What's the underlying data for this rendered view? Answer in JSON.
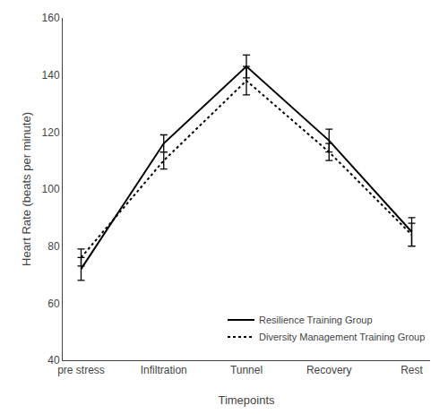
{
  "chart_data": {
    "type": "line",
    "categories": [
      "pre stress",
      "Infiltration",
      "Tunnel",
      "Recovery",
      "Rest"
    ],
    "series": [
      {
        "name": "Resilience Training Group",
        "color": "#000000",
        "line_style": "solid",
        "values": [
          72,
          116,
          143,
          117,
          85
        ],
        "errors": [
          4,
          3,
          4,
          4,
          5
        ]
      },
      {
        "name": "Diversity Management Training Group",
        "color": "#000000",
        "line_style": "dotted",
        "values": [
          76,
          110,
          138,
          113,
          84
        ],
        "errors": [
          3,
          3,
          5,
          3,
          4
        ]
      }
    ],
    "xlabel": "Timepoints",
    "ylabel": "Heart Rate (beats per minute)",
    "ylim": [
      40,
      160
    ],
    "yticks": [
      40,
      60,
      80,
      100,
      120,
      140,
      160
    ],
    "grid": false,
    "legend": "lower right"
  }
}
